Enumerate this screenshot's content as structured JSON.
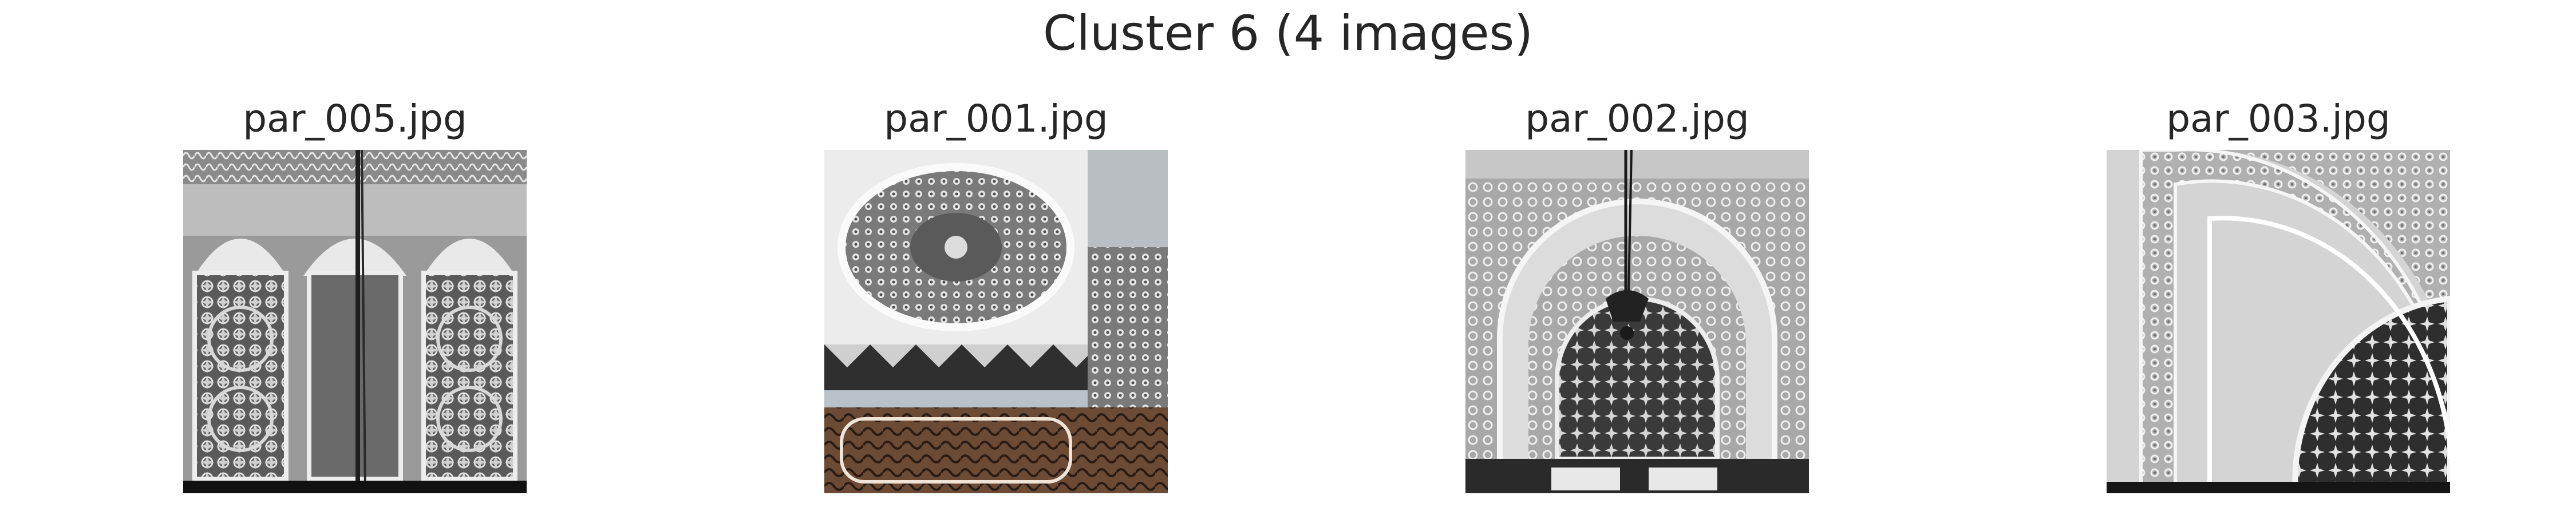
{
  "figure": {
    "title": "Cluster 6 (4 images)"
  },
  "panels": [
    {
      "filename": "par_005.jpg",
      "subject": "Moroccan carved stucco wall with three arched panels of geometric star patterns and a hanging lamp chain"
    },
    {
      "filename": "par_001.jpg",
      "subject": "Oval carved stucco rosette medallion above a zigzag zellige band and carved wood calligraphy panel"
    },
    {
      "filename": "par_002.jpg",
      "subject": "Carved stucco horseshoe arch with central star rosette and a hanging metal chandelier"
    },
    {
      "filename": "par_003.jpg",
      "subject": "Close-up of a carved stucco arch with curved bands of intricate floral and geometric ornament"
    }
  ],
  "colors": {
    "background": "#ffffff",
    "text": "#262626",
    "stone_light": "#d9d9d9",
    "stone_dark": "#3a3a3a",
    "wood": "#6b4a36"
  }
}
